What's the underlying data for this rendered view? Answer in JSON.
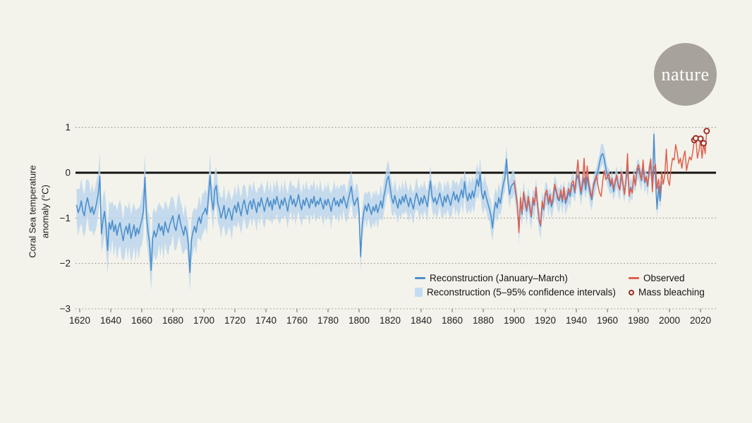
{
  "page": {
    "background_color": "#f4f3eb"
  },
  "logo": {
    "text": "nature",
    "circle_color": "#a7a29a",
    "text_color": "#ffffff"
  },
  "legend": {
    "items": [
      {
        "label": "Reconstruction (January–March)",
        "marker": "line",
        "color": "#4d8fcb"
      },
      {
        "label": "Reconstruction (5–95% confidence intervals)",
        "marker": "square",
        "color": "#c3dcf1"
      },
      {
        "label": "Observed",
        "marker": "line",
        "color": "#e0604e"
      },
      {
        "label": "Mass bleaching",
        "marker": "open-circle",
        "color": "#9c2b22"
      }
    ]
  },
  "chart_data": {
    "type": "line",
    "title": "",
    "xlabel": "",
    "ylabel": "Coral Sea temperature anomaly (°C)",
    "ylabel_lines": [
      "Coral Sea temperature",
      "anomaly (°C)"
    ],
    "xlim": [
      1612,
      2030
    ],
    "ylim": [
      -3,
      1
    ],
    "x_ticks": [
      1620,
      1640,
      1660,
      1680,
      1700,
      1720,
      1740,
      1760,
      1780,
      1800,
      1820,
      1840,
      1860,
      1880,
      1900,
      1920,
      1940,
      1960,
      1980,
      2000,
      2020
    ],
    "y_ticks": [
      {
        "value": 1,
        "label": "1"
      },
      {
        "value": 0,
        "label": "0"
      },
      {
        "value": -1,
        "label": "−1"
      },
      {
        "value": -2,
        "label": "−2"
      },
      {
        "value": -3,
        "label": "−3"
      }
    ],
    "grid": "dotted-horizontal",
    "zero_line_color": "#141414",
    "grid_color": "#95938a",
    "legend_position": "bottom-right",
    "series": [
      {
        "name": "Reconstruction (January–March)",
        "type": "line",
        "color": "#4d8fcb",
        "start_year": 1618,
        "values": [
          -0.72,
          -0.88,
          -0.78,
          -0.62,
          -0.85,
          -0.95,
          -0.7,
          -0.55,
          -0.72,
          -0.88,
          -0.75,
          -0.92,
          -0.8,
          -0.65,
          -0.45,
          -0.08,
          -1.35,
          -1.05,
          -0.85,
          -1.2,
          -1.72,
          -1.1,
          -1.25,
          -1.05,
          -1.3,
          -1.15,
          -1.38,
          -1.2,
          -1.1,
          -1.32,
          -1.5,
          -1.28,
          -1.18,
          -1.35,
          -1.12,
          -1.45,
          -1.3,
          -1.15,
          -1.4,
          -1.22,
          -1.35,
          -1.18,
          -1.05,
          -0.85,
          -0.1,
          -0.95,
          -1.3,
          -1.55,
          -2.15,
          -1.45,
          -1.28,
          -1.42,
          -1.3,
          -1.12,
          -1.28,
          -1.18,
          -1.38,
          -1.08,
          -1.22,
          -1.32,
          -1.15,
          -1.05,
          -0.95,
          -1.18,
          -1.28,
          -1.08,
          -0.92,
          -1.12,
          -1.25,
          -1.38,
          -1.18,
          -1.3,
          -1.58,
          -2.2,
          -1.48,
          -1.3,
          -1.18,
          -1.32,
          -1.08,
          -0.98,
          -1.12,
          -0.92,
          -0.88,
          -0.78,
          -0.92,
          -0.5,
          -0.06,
          -0.58,
          -0.82,
          -0.38,
          -0.28,
          -0.68,
          -0.8,
          -1.0,
          -0.88,
          -0.72,
          -1.02,
          -0.92,
          -0.78,
          -0.88,
          -1.05,
          -0.82,
          -0.72,
          -0.88,
          -0.65,
          -0.8,
          -0.95,
          -0.72,
          -0.6,
          -0.78,
          -0.92,
          -0.7,
          -0.62,
          -0.8,
          -0.58,
          -0.72,
          -0.88,
          -0.65,
          -0.75,
          -0.55,
          -0.7,
          -0.85,
          -0.68,
          -0.55,
          -0.75,
          -0.62,
          -0.82,
          -0.58,
          -0.7,
          -0.52,
          -0.68,
          -0.8,
          -0.6,
          -0.72,
          -0.55,
          -0.68,
          -0.85,
          -0.62,
          -0.5,
          -0.7,
          -0.58,
          -0.75,
          -0.65,
          -0.48,
          -0.68,
          -0.82,
          -0.6,
          -0.72,
          -0.55,
          -0.65,
          -0.78,
          -0.58,
          -0.68,
          -0.52,
          -0.75,
          -0.62,
          -0.7,
          -0.55,
          -0.68,
          -0.8,
          -0.6,
          -0.72,
          -0.58,
          -0.7,
          -0.85,
          -0.65,
          -0.55,
          -0.72,
          -0.62,
          -0.75,
          -0.58,
          -0.68,
          -0.52,
          -0.65,
          -0.78,
          -0.6,
          -0.45,
          -0.3,
          -0.58,
          -0.72,
          -0.62,
          -0.55,
          -0.85,
          -1.85,
          -1.15,
          -0.88,
          -0.72,
          -0.85,
          -0.68,
          -0.8,
          -0.92,
          -0.75,
          -0.85,
          -0.7,
          -0.88,
          -0.75,
          -0.62,
          -0.78,
          -0.52,
          -0.35,
          -0.15,
          -0.08,
          -0.32,
          -0.55,
          -0.68,
          -0.5,
          -0.65,
          -0.78,
          -0.58,
          -0.7,
          -0.52,
          -0.65,
          -0.48,
          -0.62,
          -0.75,
          -0.55,
          -0.68,
          -0.8,
          -0.6,
          -0.45,
          -0.58,
          -0.72,
          -0.55,
          -0.68,
          -0.5,
          -0.62,
          -0.75,
          -0.45,
          -0.18,
          -0.52,
          -0.65,
          -0.55,
          -0.7,
          -0.58,
          -0.45,
          -0.62,
          -0.75,
          -0.52,
          -0.65,
          -0.48,
          -0.6,
          -0.72,
          -0.55,
          -0.42,
          -0.6,
          -0.48,
          -0.65,
          -0.52,
          -0.38,
          -0.55,
          -0.2,
          -0.48,
          -0.62,
          -0.45,
          -0.58,
          -0.4,
          -0.55,
          -0.35,
          -0.15,
          -0.3,
          -0.02,
          -0.45,
          -0.58,
          -0.4,
          -0.55,
          -0.68,
          -0.8,
          -0.95,
          -1.22,
          -0.85,
          -0.65,
          -0.78,
          -0.55,
          -0.68,
          -0.45,
          -0.25,
          -0.1,
          0.3,
          -0.2,
          -0.48,
          -0.3,
          -0.25,
          -0.22,
          -0.48,
          -0.72,
          -1.28,
          -0.62,
          -0.92,
          -0.48,
          -0.68,
          -0.85,
          -0.58,
          -0.78,
          -0.98,
          -0.62,
          -0.72,
          -0.38,
          -0.72,
          -1.05,
          -1.18,
          -0.68,
          -0.82,
          -0.5,
          -0.45,
          -0.7,
          -0.55,
          -0.75,
          -0.62,
          -0.32,
          -0.42,
          -0.58,
          -0.62,
          -0.45,
          -0.65,
          -0.4,
          -0.68,
          -0.58,
          -0.42,
          -0.52,
          -0.3,
          -0.25,
          -0.45,
          -0.15,
          -0.05,
          -0.25,
          -0.48,
          -0.28,
          -0.12,
          -0.38,
          -0.1,
          -0.3,
          -0.48,
          -0.6,
          -0.32,
          -0.2,
          -0.1,
          0.05,
          0.22,
          0.38,
          0.42,
          0.3,
          0.1,
          -0.08,
          -0.15,
          -0.3,
          -0.18,
          -0.42,
          -0.22,
          -0.08,
          -0.28,
          -0.38,
          -0.05,
          -0.25,
          -0.45,
          -0.18,
          0.15,
          -0.48,
          -0.32,
          -0.42,
          -0.1,
          -0.25,
          0.02,
          0.1,
          -0.05,
          -0.18,
          0.12,
          -0.22,
          -0.12,
          -0.3,
          0.05,
          0.18,
          -0.35,
          0.85,
          -0.15,
          -0.8,
          -0.3,
          -0.62,
          -0.2
        ],
        "ci_band": {
          "name": "Reconstruction (5–95% confidence intervals)",
          "color": "#b9d5ee",
          "opacity": 0.8,
          "half_width_anchors": [
            [
              1618,
              0.46
            ],
            [
              1640,
              0.5
            ],
            [
              1666,
              0.52
            ],
            [
              1700,
              0.42
            ],
            [
              1750,
              0.36
            ],
            [
              1800,
              0.34
            ],
            [
              1850,
              0.31
            ],
            [
              1880,
              0.33
            ],
            [
              1900,
              0.28
            ],
            [
              1940,
              0.24
            ],
            [
              1970,
              0.22
            ],
            [
              1995,
              0.22
            ]
          ]
        }
      },
      {
        "name": "Observed",
        "type": "line",
        "color": "#e0604e",
        "start_year": 1900,
        "values": [
          -0.18,
          -0.42,
          -0.68,
          -1.32,
          -0.55,
          -0.88,
          -0.42,
          -0.62,
          -0.8,
          -0.52,
          -0.72,
          -0.95,
          -0.55,
          -0.68,
          -0.32,
          -0.68,
          -1.02,
          -1.15,
          -0.62,
          -0.78,
          -0.45,
          -0.38,
          -0.65,
          -0.48,
          -0.7,
          -0.55,
          -0.25,
          -0.38,
          -0.52,
          -0.58,
          -0.38,
          -0.6,
          -0.32,
          -0.62,
          -0.5,
          -0.35,
          -0.45,
          -0.22,
          -0.18,
          -0.4,
          -0.08,
          0.28,
          -0.15,
          -0.42,
          -0.2,
          0.32,
          -0.28,
          0.15,
          -0.22,
          -0.4,
          -0.55,
          -0.25,
          -0.15,
          -0.05,
          -0.3,
          -0.45,
          -0.52,
          -0.18,
          0.05,
          -0.15,
          -0.1,
          -0.02,
          -0.25,
          -0.12,
          -0.35,
          -0.18,
          -0.05,
          -0.25,
          -0.38,
          0.02,
          -0.22,
          -0.48,
          -0.15,
          0.42,
          -0.52,
          -0.35,
          -0.45,
          -0.05,
          -0.28,
          0.08,
          0.18,
          0.02,
          -0.15,
          0.28,
          -0.18,
          -0.08,
          -0.28,
          0.12,
          0.3,
          -0.42,
          0.12,
          0.18,
          -0.35,
          -0.15,
          -0.45,
          0.02,
          -0.25,
          -0.05,
          0.52,
          -0.15,
          -0.28,
          0.1,
          0.32,
          0.28,
          0.62,
          0.45,
          0.2,
          0.32,
          0.1,
          0.35,
          0.48,
          0.05,
          0.22,
          0.35,
          0.28,
          0.45,
          0.72,
          0.76,
          0.32,
          0.48,
          0.75,
          0.32,
          0.65,
          0.42,
          0.92
        ]
      },
      {
        "name": "Mass bleaching",
        "type": "scatter-open-circle",
        "color": "#9c2b22",
        "points": [
          [
            2016,
            0.72
          ],
          [
            2017,
            0.76
          ],
          [
            2020,
            0.75
          ],
          [
            2022,
            0.65
          ],
          [
            2024,
            0.92
          ]
        ]
      }
    ]
  }
}
